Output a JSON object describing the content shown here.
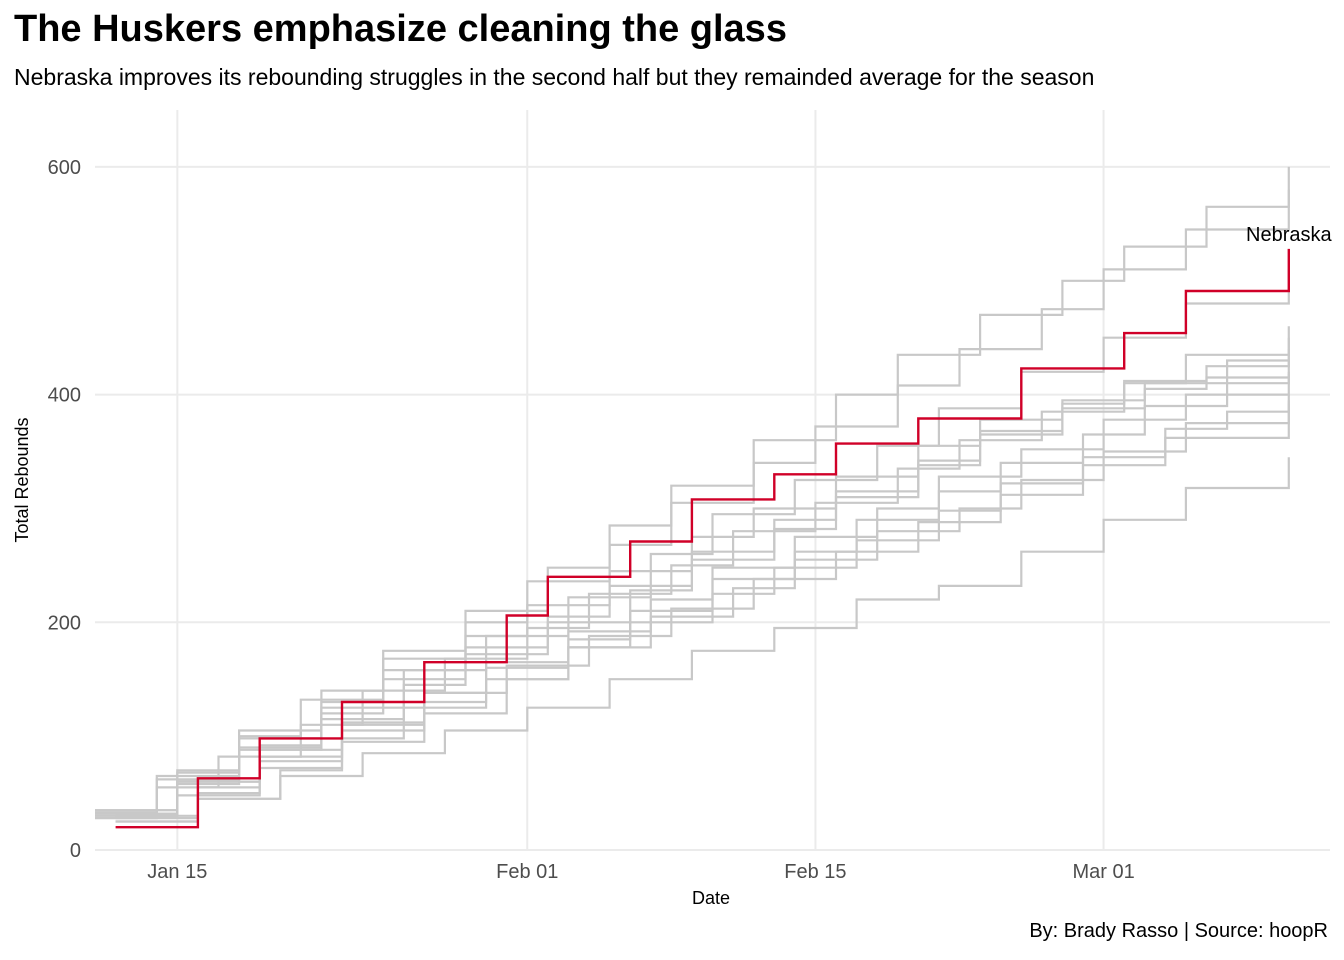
{
  "chart_data": {
    "type": "line",
    "step": true,
    "title": "The Huskers emphasize cleaning the glass",
    "subtitle": "Nebraska improves its rebounding struggles in the second half but they remainded average for the season",
    "caption": "By: Brady Rasso | Source: hoopR",
    "xlabel": "Date",
    "ylabel": "Total Rebounds",
    "xlim": [
      "2022-01-11",
      "2022-03-12"
    ],
    "ylim": [
      0,
      650
    ],
    "x_ticks": [
      {
        "date": "2022-01-15",
        "label": "Jan 15"
      },
      {
        "date": "2022-02-01",
        "label": "Feb 01"
      },
      {
        "date": "2022-02-15",
        "label": "Feb 15"
      },
      {
        "date": "2022-03-01",
        "label": "Mar 01"
      }
    ],
    "y_ticks": [
      {
        "value": 0,
        "label": "0"
      },
      {
        "value": 200,
        "label": "200"
      },
      {
        "value": 400,
        "label": "400"
      },
      {
        "value": 600,
        "label": "600"
      }
    ],
    "grid": true,
    "highlight": {
      "label": "Nebraska",
      "color": "#d00028",
      "dates": [
        "2022-01-12",
        "2022-01-16",
        "2022-01-19",
        "2022-01-23",
        "2022-01-27",
        "2022-01-31",
        "2022-02-02",
        "2022-02-06",
        "2022-02-09",
        "2022-02-13",
        "2022-02-16",
        "2022-02-20",
        "2022-02-25",
        "2022-03-02",
        "2022-03-05",
        "2022-03-10"
      ],
      "values": [
        20,
        63,
        98,
        130,
        165,
        206,
        240,
        271,
        308,
        330,
        357,
        379,
        423,
        454,
        491,
        528
      ]
    },
    "background_color": "#c8c8c8",
    "background_series": [
      {
        "dates": [
          "2022-01-11",
          "2022-01-15",
          "2022-01-18",
          "2022-01-22",
          "2022-01-25",
          "2022-01-29",
          "2022-02-02",
          "2022-02-05",
          "2022-02-08",
          "2022-02-12",
          "2022-02-16",
          "2022-02-19",
          "2022-02-23",
          "2022-02-27",
          "2022-03-02",
          "2022-03-06",
          "2022-03-10"
        ],
        "values": [
          35,
          70,
          105,
          140,
          175,
          210,
          248,
          285,
          320,
          360,
          400,
          435,
          470,
          500,
          530,
          565,
          600
        ]
      },
      {
        "dates": [
          "2022-01-11",
          "2022-01-14",
          "2022-01-18",
          "2022-01-21",
          "2022-01-25",
          "2022-01-29",
          "2022-02-01",
          "2022-02-05",
          "2022-02-08",
          "2022-02-12",
          "2022-02-15",
          "2022-02-19",
          "2022-02-22",
          "2022-02-26",
          "2022-03-01",
          "2022-03-05",
          "2022-03-10"
        ],
        "values": [
          30,
          65,
          100,
          132,
          168,
          200,
          236,
          268,
          305,
          340,
          372,
          408,
          440,
          475,
          510,
          545,
          580
        ]
      },
      {
        "dates": [
          "2022-01-11",
          "2022-01-15",
          "2022-01-19",
          "2022-01-22",
          "2022-01-26",
          "2022-01-30",
          "2022-02-03",
          "2022-02-07",
          "2022-02-10",
          "2022-02-14",
          "2022-02-18",
          "2022-02-21",
          "2022-02-25",
          "2022-03-01",
          "2022-03-05",
          "2022-03-10"
        ],
        "values": [
          32,
          60,
          92,
          125,
          158,
          188,
          222,
          260,
          295,
          325,
          355,
          388,
          420,
          450,
          480,
          510
        ]
      },
      {
        "dates": [
          "2022-01-11",
          "2022-01-14",
          "2022-01-17",
          "2022-01-21",
          "2022-01-24",
          "2022-01-28",
          "2022-02-01",
          "2022-02-04",
          "2022-02-08",
          "2022-02-11",
          "2022-02-15",
          "2022-02-19",
          "2022-02-22",
          "2022-02-26",
          "2022-03-02",
          "2022-03-05",
          "2022-03-10"
        ],
        "values": [
          28,
          55,
          82,
          110,
          140,
          168,
          195,
          225,
          250,
          280,
          305,
          335,
          360,
          385,
          410,
          435,
          460
        ]
      },
      {
        "dates": [
          "2022-01-12",
          "2022-01-16",
          "2022-01-19",
          "2022-01-23",
          "2022-01-27",
          "2022-01-30",
          "2022-02-03",
          "2022-02-06",
          "2022-02-10",
          "2022-02-14",
          "2022-02-17",
          "2022-02-21",
          "2022-02-24",
          "2022-02-28",
          "2022-03-03",
          "2022-03-07",
          "2022-03-10"
        ],
        "values": [
          25,
          50,
          78,
          105,
          130,
          160,
          185,
          210,
          238,
          262,
          290,
          315,
          340,
          365,
          390,
          410,
          430
        ]
      },
      {
        "dates": [
          "2022-01-11",
          "2022-01-15",
          "2022-01-18",
          "2022-01-22",
          "2022-01-26",
          "2022-01-29",
          "2022-02-02",
          "2022-02-06",
          "2022-02-09",
          "2022-02-13",
          "2022-02-16",
          "2022-02-20",
          "2022-02-23",
          "2022-02-27",
          "2022-03-03",
          "2022-03-06",
          "2022-03-10"
        ],
        "values": [
          30,
          58,
          88,
          115,
          145,
          172,
          200,
          228,
          255,
          282,
          310,
          338,
          365,
          388,
          405,
          415,
          420
        ]
      },
      {
        "dates": [
          "2022-01-12",
          "2022-01-16",
          "2022-01-20",
          "2022-01-23",
          "2022-01-27",
          "2022-01-31",
          "2022-02-03",
          "2022-02-07",
          "2022-02-11",
          "2022-02-14",
          "2022-02-18",
          "2022-02-22",
          "2022-02-25",
          "2022-03-01",
          "2022-03-05",
          "2022-03-10"
        ],
        "values": [
          28,
          45,
          70,
          95,
          120,
          150,
          178,
          205,
          230,
          255,
          280,
          300,
          325,
          350,
          375,
          400
        ]
      },
      {
        "dates": [
          "2022-01-11",
          "2022-01-14",
          "2022-01-18",
          "2022-01-22",
          "2022-01-25",
          "2022-01-29",
          "2022-02-02",
          "2022-02-05",
          "2022-02-09",
          "2022-02-13",
          "2022-02-16",
          "2022-02-20",
          "2022-02-23",
          "2022-02-27",
          "2022-03-02",
          "2022-03-06",
          "2022-03-10"
        ],
        "values": [
          33,
          62,
          90,
          120,
          150,
          178,
          205,
          232,
          262,
          290,
          315,
          342,
          368,
          392,
          412,
          425,
          440
        ]
      },
      {
        "dates": [
          "2022-01-12",
          "2022-01-15",
          "2022-01-19",
          "2022-01-23",
          "2022-01-26",
          "2022-01-30",
          "2022-02-03",
          "2022-02-06",
          "2022-02-10",
          "2022-02-13",
          "2022-02-17",
          "2022-02-21",
          "2022-02-24",
          "2022-02-28",
          "2022-03-04",
          "2022-03-07",
          "2022-03-10"
        ],
        "values": [
          30,
          48,
          72,
          98,
          125,
          150,
          178,
          200,
          225,
          248,
          272,
          298,
          322,
          345,
          370,
          385,
          395
        ]
      },
      {
        "dates": [
          "2022-01-11",
          "2022-01-15",
          "2022-01-18",
          "2022-01-22",
          "2022-01-25",
          "2022-01-29",
          "2022-02-01",
          "2022-02-05",
          "2022-02-09",
          "2022-02-12",
          "2022-02-16",
          "2022-02-20",
          "2022-02-23",
          "2022-02-27",
          "2022-03-03",
          "2022-03-07",
          "2022-03-10"
        ],
        "values": [
          35,
          68,
          98,
          130,
          158,
          188,
          215,
          245,
          275,
          300,
          328,
          355,
          378,
          395,
          410,
          430,
          450
        ]
      },
      {
        "dates": [
          "2022-01-12",
          "2022-01-16",
          "2022-01-20",
          "2022-01-24",
          "2022-01-28",
          "2022-02-01",
          "2022-02-05",
          "2022-02-09",
          "2022-02-13",
          "2022-02-17",
          "2022-02-21",
          "2022-02-25",
          "2022-03-01",
          "2022-03-05",
          "2022-03-10"
        ],
        "values": [
          25,
          45,
          65,
          85,
          105,
          125,
          150,
          175,
          195,
          220,
          232,
          262,
          290,
          318,
          345
        ]
      },
      {
        "dates": [
          "2022-01-11",
          "2022-01-15",
          "2022-01-19",
          "2022-01-23",
          "2022-01-27",
          "2022-01-31",
          "2022-02-04",
          "2022-02-08",
          "2022-02-12",
          "2022-02-16",
          "2022-02-20",
          "2022-02-24",
          "2022-02-28",
          "2022-03-04",
          "2022-03-10"
        ],
        "values": [
          32,
          60,
          88,
          112,
          138,
          162,
          188,
          212,
          238,
          262,
          288,
          312,
          338,
          362,
          392
        ]
      },
      {
        "dates": [
          "2022-01-12",
          "2022-01-16",
          "2022-01-19",
          "2022-01-23",
          "2022-01-27",
          "2022-01-30",
          "2022-02-03",
          "2022-02-07",
          "2022-02-10",
          "2022-02-14",
          "2022-02-18",
          "2022-02-21",
          "2022-02-25",
          "2022-03-01",
          "2022-03-05",
          "2022-03-10"
        ],
        "values": [
          30,
          55,
          82,
          110,
          138,
          165,
          192,
          220,
          248,
          275,
          300,
          328,
          352,
          378,
          400,
          418
        ]
      }
    ]
  }
}
